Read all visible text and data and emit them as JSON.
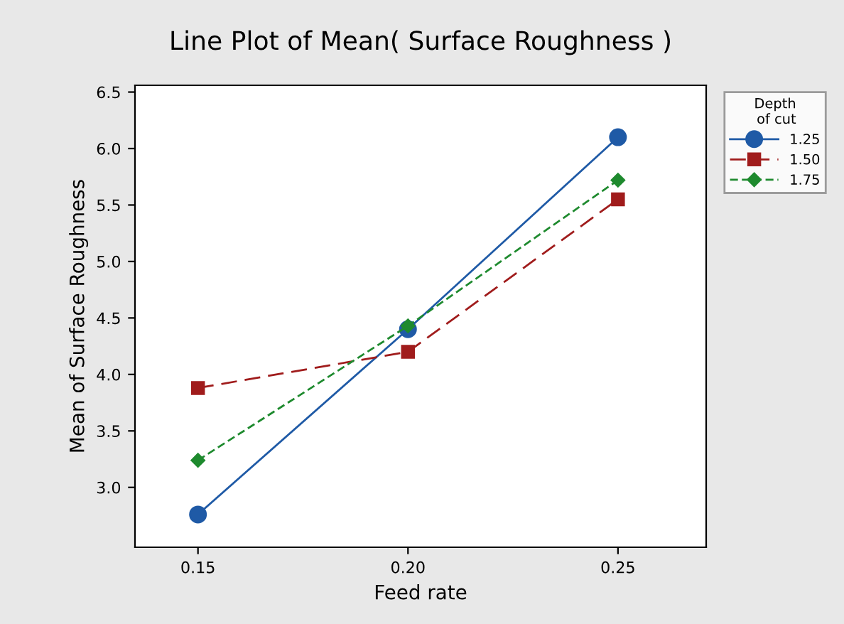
{
  "chart_data": {
    "type": "line",
    "title": "Line Plot of Mean( Surface Roughness )",
    "xlabel": "Feed rate",
    "ylabel": "Mean of Surface Roughness",
    "legend_title": "Depth\nof cut",
    "x": [
      0.15,
      0.2,
      0.25
    ],
    "series": [
      {
        "name": "1.25",
        "color": "#1f5aa6",
        "values": [
          2.76,
          4.4,
          6.1
        ],
        "marker": "circle",
        "line_style": "solid"
      },
      {
        "name": "1.50",
        "color": "#a01c1c",
        "values": [
          3.88,
          4.2,
          5.55
        ],
        "marker": "square",
        "line_style": "dashed"
      },
      {
        "name": "1.75",
        "color": "#1e8a2e",
        "values": [
          3.24,
          4.43,
          5.72
        ],
        "marker": "diamond",
        "line_style": "dotted"
      }
    ],
    "xlim": [
      0.135,
      0.271
    ],
    "ylim": [
      2.47,
      6.56
    ],
    "xticks": [
      {
        "value": 0.15,
        "label": "0.15"
      },
      {
        "value": 0.2,
        "label": "0.20"
      },
      {
        "value": 0.25,
        "label": "0.25"
      }
    ],
    "yticks": [
      {
        "value": 3,
        "label": "3.0"
      },
      {
        "value": 3.5,
        "label": "3.5"
      },
      {
        "value": 4,
        "label": "4.0"
      },
      {
        "value": 4.5,
        "label": "4.5"
      },
      {
        "value": 5,
        "label": "5.0"
      },
      {
        "value": 5.5,
        "label": "5.5"
      },
      {
        "value": 6,
        "label": "6.0"
      },
      {
        "value": 6.5,
        "label": "6.5"
      }
    ],
    "grid": false,
    "legend": "right"
  }
}
